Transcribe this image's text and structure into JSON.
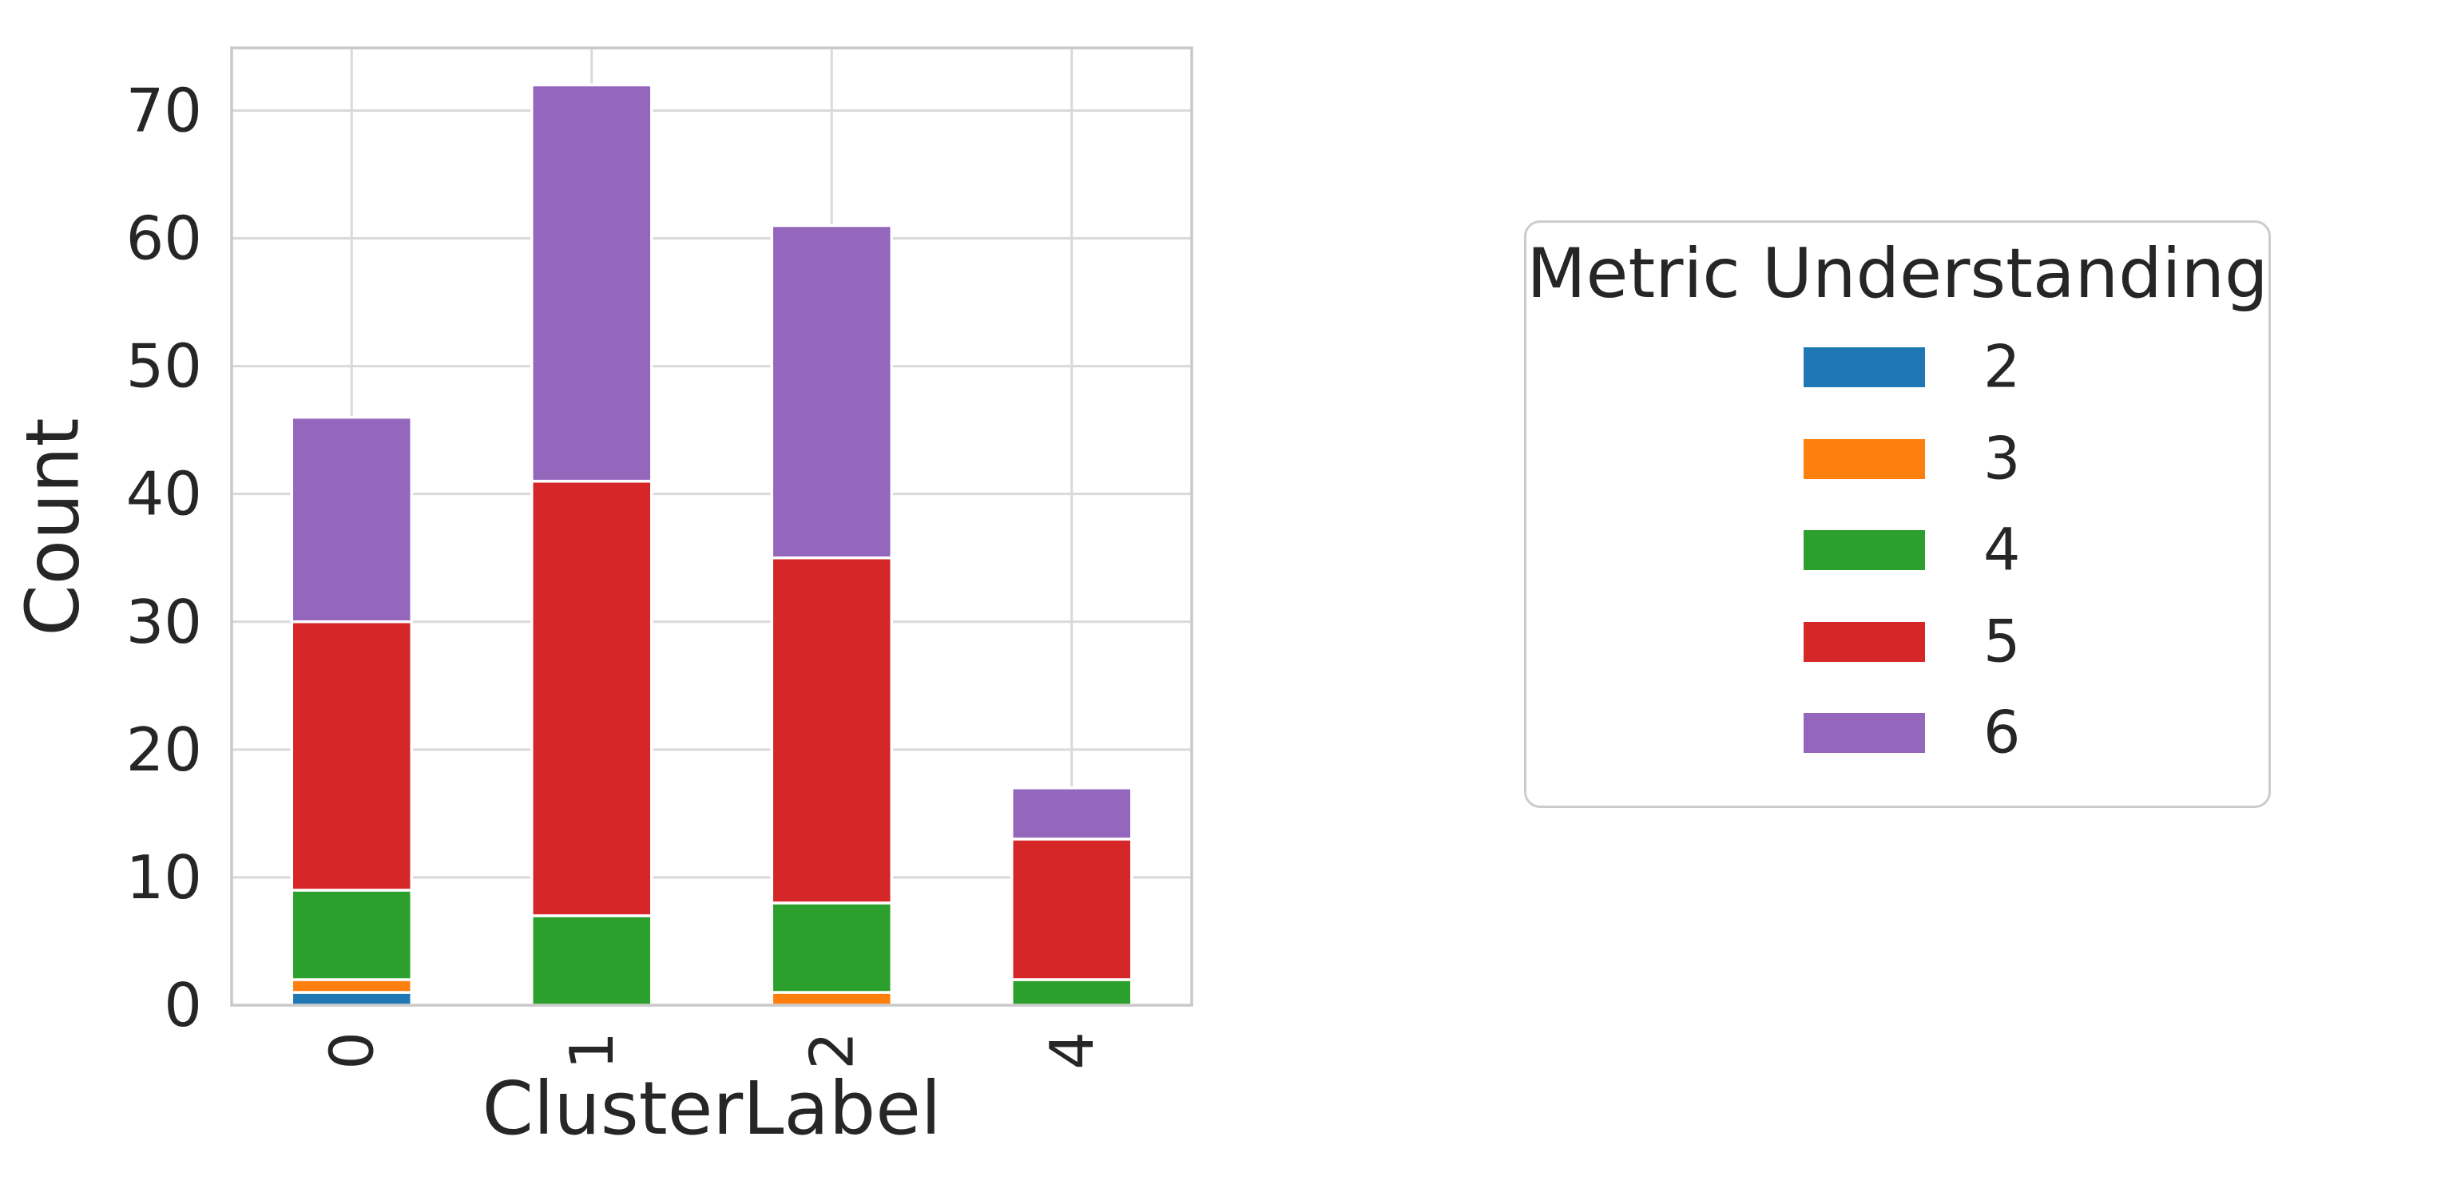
{
  "figure": {
    "background": "#ffffff",
    "text_color": "#262626",
    "grid_color": "#d9d9d9",
    "border_color": "#c9c9c9"
  },
  "chart_data": {
    "type": "bar",
    "stacked": true,
    "title": "",
    "xlabel": "ClusterLabel",
    "ylabel": "Count",
    "categories": [
      "0",
      "1",
      "2",
      "4"
    ],
    "series": [
      {
        "name": "2",
        "color": "#1f77b4",
        "values": [
          1,
          0,
          0,
          0
        ]
      },
      {
        "name": "3",
        "color": "#ff7f0e",
        "values": [
          1,
          0,
          1,
          0
        ]
      },
      {
        "name": "4",
        "color": "#2ca02c",
        "values": [
          7,
          7,
          7,
          2
        ]
      },
      {
        "name": "5",
        "color": "#d62728",
        "values": [
          21,
          34,
          27,
          11
        ]
      },
      {
        "name": "6",
        "color": "#9467bd",
        "values": [
          16,
          31,
          26,
          4
        ]
      }
    ],
    "totals": [
      46,
      72,
      61,
      17
    ],
    "yticks": [
      0,
      10,
      20,
      30,
      40,
      50,
      60,
      70
    ],
    "ylim": [
      0,
      74.9
    ],
    "grid": true,
    "x_tick_rotation": 90,
    "legend": {
      "title": "Metric Understanding",
      "position": "right"
    }
  }
}
